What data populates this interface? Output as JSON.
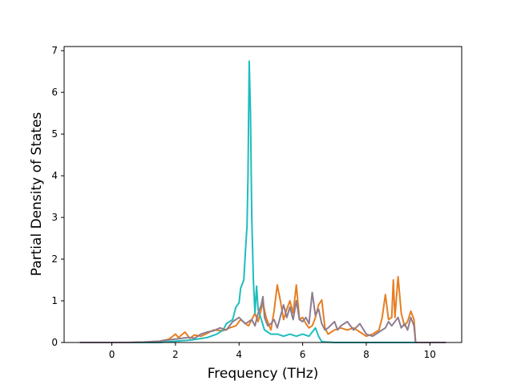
{
  "chart_data": {
    "type": "line",
    "title": "",
    "xlabel": "Frequency (THz)",
    "ylabel": "Partial Density of States",
    "xlim": [
      -1.5,
      11.0
    ],
    "ylim": [
      0,
      7.1
    ],
    "xticks": [
      0,
      2,
      4,
      6,
      8,
      10
    ],
    "yticks": [
      0,
      1,
      2,
      3,
      4,
      5,
      6,
      7
    ],
    "grid": false,
    "legend": "none",
    "series": [
      {
        "color": "#e67e22",
        "points": [
          [
            -1.0,
            0
          ],
          [
            0.5,
            0
          ],
          [
            1.0,
            0.01
          ],
          [
            1.5,
            0.03
          ],
          [
            1.8,
            0.08
          ],
          [
            2.0,
            0.2
          ],
          [
            2.1,
            0.12
          ],
          [
            2.3,
            0.25
          ],
          [
            2.45,
            0.1
          ],
          [
            2.6,
            0.18
          ],
          [
            2.8,
            0.15
          ],
          [
            3.0,
            0.22
          ],
          [
            3.2,
            0.3
          ],
          [
            3.5,
            0.28
          ],
          [
            3.7,
            0.35
          ],
          [
            3.9,
            0.4
          ],
          [
            4.05,
            0.55
          ],
          [
            4.2,
            0.45
          ],
          [
            4.3,
            0.4
          ],
          [
            4.5,
            0.7
          ],
          [
            4.6,
            0.5
          ],
          [
            4.75,
            0.95
          ],
          [
            4.85,
            0.6
          ],
          [
            5.0,
            0.3
          ],
          [
            5.1,
            0.75
          ],
          [
            5.2,
            1.38
          ],
          [
            5.3,
            1.0
          ],
          [
            5.4,
            0.55
          ],
          [
            5.5,
            0.8
          ],
          [
            5.6,
            1.0
          ],
          [
            5.7,
            0.7
          ],
          [
            5.8,
            1.38
          ],
          [
            5.9,
            0.55
          ],
          [
            6.0,
            0.6
          ],
          [
            6.1,
            0.45
          ],
          [
            6.2,
            0.35
          ],
          [
            6.3,
            0.4
          ],
          [
            6.4,
            0.6
          ],
          [
            6.5,
            0.9
          ],
          [
            6.6,
            1.02
          ],
          [
            6.7,
            0.35
          ],
          [
            6.8,
            0.2
          ],
          [
            7.0,
            0.3
          ],
          [
            7.2,
            0.35
          ],
          [
            7.4,
            0.3
          ],
          [
            7.6,
            0.35
          ],
          [
            7.8,
            0.25
          ],
          [
            8.0,
            0.15
          ],
          [
            8.2,
            0.2
          ],
          [
            8.4,
            0.3
          ],
          [
            8.5,
            0.6
          ],
          [
            8.6,
            1.15
          ],
          [
            8.7,
            0.55
          ],
          [
            8.8,
            0.6
          ],
          [
            8.85,
            1.5
          ],
          [
            8.9,
            0.6
          ],
          [
            9.0,
            1.58
          ],
          [
            9.1,
            0.7
          ],
          [
            9.2,
            0.4
          ],
          [
            9.3,
            0.5
          ],
          [
            9.4,
            0.75
          ],
          [
            9.5,
            0.55
          ],
          [
            9.55,
            0
          ],
          [
            10.5,
            0
          ]
        ]
      },
      {
        "color": "#1fbdbd",
        "points": [
          [
            -1.0,
            0
          ],
          [
            1.5,
            0
          ],
          [
            2.0,
            0.03
          ],
          [
            2.5,
            0.06
          ],
          [
            3.0,
            0.12
          ],
          [
            3.3,
            0.2
          ],
          [
            3.5,
            0.3
          ],
          [
            3.6,
            0.45
          ],
          [
            3.8,
            0.55
          ],
          [
            3.9,
            0.85
          ],
          [
            4.0,
            0.95
          ],
          [
            4.05,
            1.3
          ],
          [
            4.15,
            1.5
          ],
          [
            4.2,
            2.2
          ],
          [
            4.25,
            2.8
          ],
          [
            4.28,
            4.0
          ],
          [
            4.32,
            6.75
          ],
          [
            4.36,
            5.5
          ],
          [
            4.4,
            3.0
          ],
          [
            4.45,
            1.5
          ],
          [
            4.5,
            0.7
          ],
          [
            4.55,
            1.35
          ],
          [
            4.6,
            0.8
          ],
          [
            4.7,
            0.55
          ],
          [
            4.8,
            0.3
          ],
          [
            4.9,
            0.25
          ],
          [
            5.0,
            0.2
          ],
          [
            5.2,
            0.2
          ],
          [
            5.4,
            0.15
          ],
          [
            5.6,
            0.2
          ],
          [
            5.8,
            0.15
          ],
          [
            6.0,
            0.2
          ],
          [
            6.2,
            0.15
          ],
          [
            6.4,
            0.35
          ],
          [
            6.5,
            0.15
          ],
          [
            6.6,
            0.02
          ],
          [
            7.0,
            0
          ],
          [
            10.5,
            0
          ]
        ]
      },
      {
        "color": "#8e7d8e",
        "points": [
          [
            -1.0,
            0
          ],
          [
            0.5,
            0
          ],
          [
            1.0,
            0.01
          ],
          [
            1.5,
            0.03
          ],
          [
            2.0,
            0.08
          ],
          [
            2.4,
            0.12
          ],
          [
            2.6,
            0.1
          ],
          [
            2.8,
            0.2
          ],
          [
            3.0,
            0.25
          ],
          [
            3.2,
            0.28
          ],
          [
            3.4,
            0.35
          ],
          [
            3.6,
            0.3
          ],
          [
            3.8,
            0.5
          ],
          [
            4.0,
            0.6
          ],
          [
            4.2,
            0.45
          ],
          [
            4.4,
            0.55
          ],
          [
            4.5,
            0.4
          ],
          [
            4.6,
            0.7
          ],
          [
            4.7,
            0.9
          ],
          [
            4.75,
            1.1
          ],
          [
            4.8,
            0.6
          ],
          [
            4.9,
            0.4
          ],
          [
            5.0,
            0.45
          ],
          [
            5.1,
            0.55
          ],
          [
            5.2,
            0.35
          ],
          [
            5.4,
            0.9
          ],
          [
            5.5,
            0.6
          ],
          [
            5.6,
            0.85
          ],
          [
            5.7,
            0.55
          ],
          [
            5.8,
            1.0
          ],
          [
            5.9,
            0.55
          ],
          [
            6.0,
            0.5
          ],
          [
            6.1,
            0.6
          ],
          [
            6.2,
            0.45
          ],
          [
            6.3,
            1.2
          ],
          [
            6.4,
            0.65
          ],
          [
            6.5,
            0.8
          ],
          [
            6.6,
            0.45
          ],
          [
            6.7,
            0.3
          ],
          [
            6.8,
            0.35
          ],
          [
            7.0,
            0.5
          ],
          [
            7.1,
            0.3
          ],
          [
            7.2,
            0.4
          ],
          [
            7.4,
            0.5
          ],
          [
            7.6,
            0.3
          ],
          [
            7.8,
            0.45
          ],
          [
            8.0,
            0.2
          ],
          [
            8.2,
            0.15
          ],
          [
            8.4,
            0.25
          ],
          [
            8.6,
            0.35
          ],
          [
            8.7,
            0.5
          ],
          [
            8.8,
            0.4
          ],
          [
            9.0,
            0.6
          ],
          [
            9.1,
            0.35
          ],
          [
            9.2,
            0.45
          ],
          [
            9.3,
            0.3
          ],
          [
            9.4,
            0.6
          ],
          [
            9.5,
            0.4
          ],
          [
            9.55,
            0
          ],
          [
            10.5,
            0
          ]
        ]
      }
    ]
  }
}
